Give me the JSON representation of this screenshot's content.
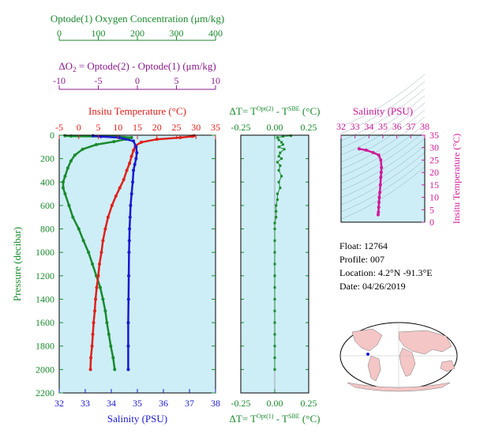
{
  "colors": {
    "oxygen": "#1a8a2e",
    "delta_o2": "#8b1a8b",
    "temperature": "#e0201c",
    "salinity": "#1a1ad0",
    "salinity_title": "#d01a9a",
    "panel_bg": "#cdeef7",
    "axis_black": "#000000"
  },
  "info": {
    "float": "Float:  12764",
    "profile": "Profile:  007",
    "location": "Location:  4.2°N  -91.3°E",
    "date": "Date:  04/26/2019"
  },
  "map": {
    "icon": "world-map-icon",
    "marker_color": "#1a1ad0"
  },
  "chart_data": [
    {
      "type": "line",
      "name_key": "main-profile",
      "ylabel": "Pressure (decibar)",
      "ylim": [
        2200,
        0
      ],
      "y_ticks": [
        0,
        200,
        400,
        600,
        800,
        1000,
        1200,
        1400,
        1600,
        1800,
        2000,
        2200
      ],
      "axes": {
        "oxygen": {
          "label": "Optode(1) Oxygen Concentration (μm/kg)",
          "range": [
            0,
            400
          ],
          "ticks": [
            0,
            100,
            200,
            300,
            400
          ]
        },
        "delta_o2": {
          "label_prefix": "ΔO",
          "label_sub": "2",
          "label_rest": " = Optode(2) - Optode(1)    (μm/kg)",
          "range": [
            -10,
            10
          ],
          "ticks": [
            -10,
            -5,
            0,
            5,
            10
          ]
        },
        "temperature": {
          "label": "Insitu Temperature (°C)",
          "range": [
            -5,
            35
          ],
          "ticks": [
            -5,
            0,
            5,
            10,
            15,
            20,
            25,
            30,
            35
          ]
        },
        "salinity": {
          "label": "Salinity (PSU)",
          "range": [
            32,
            38
          ],
          "ticks": [
            32,
            33,
            34,
            35,
            36,
            37,
            38
          ]
        }
      },
      "series": [
        {
          "name": "Optode(1) Oxygen Concentration",
          "axis": "oxygen",
          "points": [
            [
              15,
              5
            ],
            [
              30,
              8
            ],
            [
              150,
              12
            ],
            [
              185,
              20
            ],
            [
              170,
              35
            ],
            [
              140,
              55
            ],
            [
              95,
              80
            ],
            [
              60,
              120
            ],
            [
              40,
              170
            ],
            [
              30,
              220
            ],
            [
              22,
              280
            ],
            [
              15,
              350
            ],
            [
              10,
              400
            ],
            [
              10,
              450
            ],
            [
              15,
              500
            ],
            [
              25,
              600
            ],
            [
              35,
              700
            ],
            [
              50,
              800
            ],
            [
              62,
              900
            ],
            [
              75,
              1000
            ],
            [
              85,
              1100
            ],
            [
              95,
              1200
            ],
            [
              105,
              1300
            ],
            [
              112,
              1400
            ],
            [
              118,
              1500
            ],
            [
              122,
              1600
            ],
            [
              127,
              1700
            ],
            [
              132,
              1800
            ],
            [
              138,
              1900
            ],
            [
              142,
              2000
            ]
          ]
        },
        {
          "name": "Insitu Temperature",
          "axis": "temperature",
          "points": [
            [
              29.5,
              5
            ],
            [
              29,
              10
            ],
            [
              26,
              20
            ],
            [
              20,
              35
            ],
            [
              16,
              60
            ],
            [
              14.5,
              90
            ],
            [
              14,
              130
            ],
            [
              13.5,
              180
            ],
            [
              13,
              240
            ],
            [
              12.3,
              300
            ],
            [
              11.5,
              380
            ],
            [
              10.5,
              450
            ],
            [
              9.5,
              520
            ],
            [
              8.5,
              600
            ],
            [
              7.5,
              700
            ],
            [
              6.8,
              800
            ],
            [
              6.2,
              900
            ],
            [
              5.8,
              1000
            ],
            [
              5.3,
              1100
            ],
            [
              5,
              1200
            ],
            [
              4.6,
              1300
            ],
            [
              4.3,
              1400
            ],
            [
              4.1,
              1500
            ],
            [
              3.8,
              1600
            ],
            [
              3.6,
              1700
            ],
            [
              3.4,
              1800
            ],
            [
              3.1,
              1900
            ],
            [
              3,
              2000
            ]
          ]
        },
        {
          "name": "Salinity",
          "axis": "salinity",
          "points": [
            [
              33.3,
              5
            ],
            [
              33.6,
              12
            ],
            [
              34.3,
              20
            ],
            [
              34.85,
              50
            ],
            [
              34.95,
              100
            ],
            [
              34.98,
              150
            ],
            [
              34.95,
              200
            ],
            [
              34.9,
              250
            ],
            [
              34.85,
              300
            ],
            [
              34.82,
              400
            ],
            [
              34.78,
              500
            ],
            [
              34.74,
              600
            ],
            [
              34.72,
              700
            ],
            [
              34.7,
              800
            ],
            [
              34.69,
              900
            ],
            [
              34.68,
              1000
            ],
            [
              34.67,
              1200
            ],
            [
              34.66,
              1400
            ],
            [
              34.65,
              1600
            ],
            [
              34.65,
              1800
            ],
            [
              34.65,
              2000
            ]
          ]
        }
      ]
    },
    {
      "type": "scatter",
      "name_key": "delta-t",
      "top_label": {
        "prefix": "ΔT= T",
        "sup1": "Opt(2)",
        "mid": " - T",
        "sup2": "SBE",
        "suffix": " (°C)"
      },
      "bottom_label": {
        "prefix": "ΔT= T",
        "sup1": "Opt(1)",
        "mid": " - T",
        "sup2": "SBE",
        "suffix": " (°C)"
      },
      "xlim": [
        -0.25,
        0.25
      ],
      "x_ticks": [
        -0.25,
        0.0,
        0.25
      ],
      "x_tick_labels": [
        "-0.25",
        "0.00",
        "0.25"
      ],
      "ylim": [
        2200,
        0
      ],
      "points": [
        [
          0.12,
          5
        ],
        [
          0.06,
          10
        ],
        [
          0.02,
          20
        ],
        [
          0.03,
          40
        ],
        [
          0.05,
          60
        ],
        [
          0.06,
          80
        ],
        [
          0.03,
          100
        ],
        [
          0.07,
          120
        ],
        [
          0.04,
          150
        ],
        [
          0.03,
          180
        ],
        [
          0.05,
          200
        ],
        [
          0.02,
          230
        ],
        [
          0.04,
          260
        ],
        [
          0.03,
          300
        ],
        [
          0.05,
          350
        ],
        [
          0.03,
          400
        ],
        [
          0.04,
          450
        ],
        [
          0.02,
          500
        ],
        [
          0.02,
          550
        ],
        [
          0.01,
          600
        ],
        [
          0.01,
          650
        ],
        [
          0.01,
          700
        ],
        [
          0.0,
          750
        ],
        [
          0.0,
          800
        ],
        [
          0.0,
          900
        ],
        [
          0.0,
          1000
        ],
        [
          0.0,
          1100
        ],
        [
          0.0,
          1200
        ],
        [
          0.0,
          1300
        ],
        [
          0.0,
          1400
        ],
        [
          0.0,
          1500
        ],
        [
          0.0,
          1600
        ],
        [
          0.0,
          1700
        ],
        [
          0.0,
          1800
        ],
        [
          0.0,
          1900
        ],
        [
          0.0,
          2000
        ]
      ]
    },
    {
      "type": "scatter",
      "name_key": "ts-diagram",
      "title": "Salinity (PSU)",
      "xlim": [
        32,
        38
      ],
      "x_ticks": [
        32,
        33,
        34,
        35,
        36,
        37,
        38
      ],
      "ylabel": "Insitu Temperature (°C)",
      "ylim": [
        0,
        35
      ],
      "y_ticks": [
        0,
        5,
        10,
        15,
        20,
        25,
        30,
        35
      ],
      "points": [
        [
          33.3,
          29.5
        ],
        [
          33.8,
          29
        ],
        [
          34.3,
          28
        ],
        [
          34.7,
          27
        ],
        [
          34.85,
          25
        ],
        [
          34.9,
          22
        ],
        [
          34.88,
          20
        ],
        [
          34.85,
          18
        ],
        [
          34.82,
          15
        ],
        [
          34.78,
          12
        ],
        [
          34.74,
          10
        ],
        [
          34.72,
          8
        ],
        [
          34.7,
          6
        ],
        [
          34.68,
          4
        ],
        [
          34.66,
          3
        ]
      ]
    }
  ]
}
